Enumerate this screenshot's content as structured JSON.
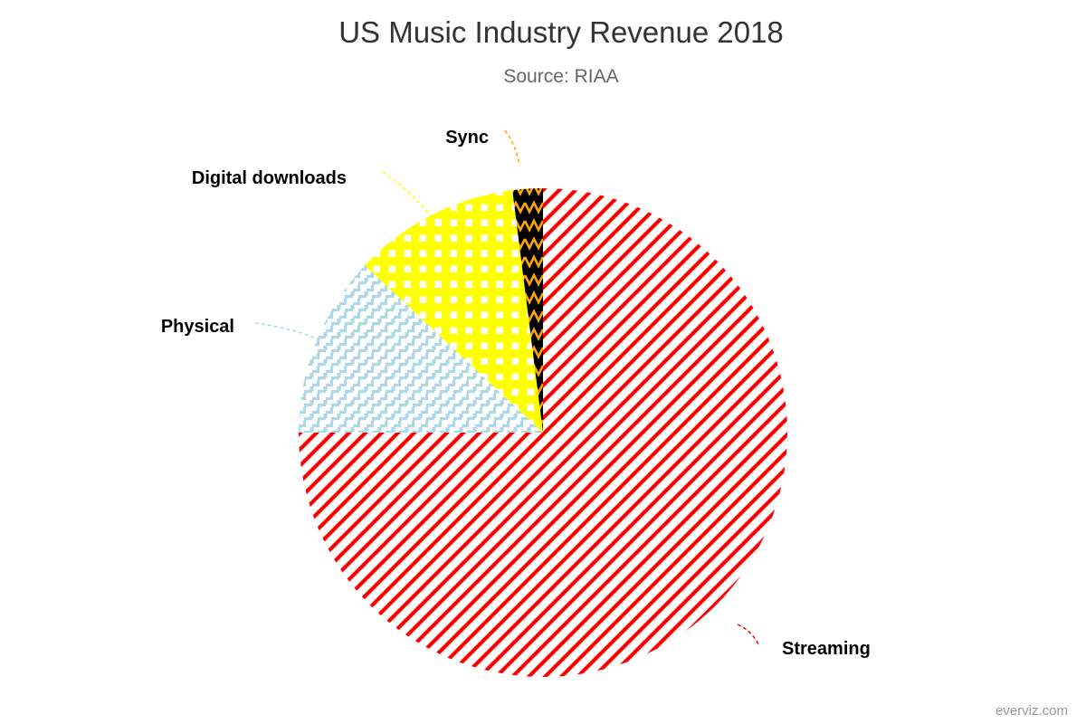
{
  "chart_data": {
    "type": "pie",
    "title": "US Music Industry Revenue 2018",
    "subtitle": "Source: RIAA",
    "categories": [
      "Streaming",
      "Physical",
      "Digital downloads",
      "Sync"
    ],
    "values": [
      75,
      12,
      11,
      2
    ],
    "unit": "%",
    "colors": [
      "#ff0000",
      "#add8e6",
      "#ffff00",
      "#000000"
    ],
    "patterns": [
      "diagonal-stripes",
      "steps",
      "squares",
      "zigzag"
    ],
    "pattern_accent": "#ffa500",
    "legend": false,
    "credits": "everviz.com"
  }
}
